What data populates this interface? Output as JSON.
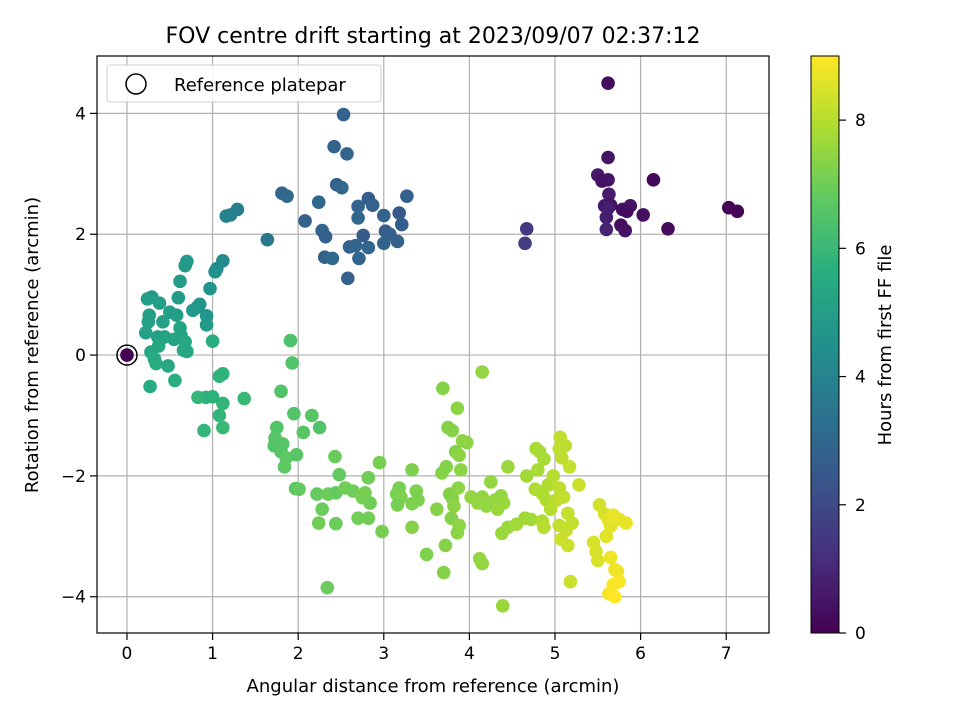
{
  "chart_data": {
    "type": "scatter",
    "title": "FOV centre drift starting at 2023/09/07 02:37:12",
    "xlabel": "Angular distance from reference (arcmin)",
    "ylabel": "Rotation from reference (arcmin)",
    "xlim": [
      -0.35,
      7.5
    ],
    "ylim": [
      -4.6,
      4.95
    ],
    "xticks": [
      0,
      1,
      2,
      3,
      4,
      5,
      6,
      7
    ],
    "yticks": [
      -4,
      -2,
      0,
      2,
      4
    ],
    "xtick_labels": [
      "0",
      "1",
      "2",
      "3",
      "4",
      "5",
      "6",
      "7"
    ],
    "ytick_labels": [
      "−4",
      "−2",
      "0",
      "2",
      "4"
    ],
    "grid": true,
    "legend": {
      "placement": "top-left",
      "entries": [
        "Reference platepar"
      ]
    },
    "colorbar": {
      "label": "Hours from first FF file",
      "range": [
        0,
        9
      ],
      "ticks": [
        0,
        2,
        4,
        6,
        8
      ],
      "tick_labels": [
        "0",
        "2",
        "4",
        "6",
        "8"
      ],
      "colormap": "viridis"
    },
    "reference_point": {
      "x": 0,
      "y": 0,
      "c": 0
    },
    "points": [
      {
        "x": 5.62,
        "y": 4.5,
        "c": 0.3
      },
      {
        "x": 5.62,
        "y": 3.27,
        "c": 0.5
      },
      {
        "x": 5.5,
        "y": 2.98,
        "c": 0.6
      },
      {
        "x": 5.55,
        "y": 2.88,
        "c": 0.4
      },
      {
        "x": 5.62,
        "y": 2.9,
        "c": 0.5
      },
      {
        "x": 5.63,
        "y": 2.66,
        "c": 0.7
      },
      {
        "x": 5.58,
        "y": 2.47,
        "c": 0.6
      },
      {
        "x": 5.65,
        "y": 2.48,
        "c": 0.4
      },
      {
        "x": 5.62,
        "y": 2.43,
        "c": 0.8
      },
      {
        "x": 5.79,
        "y": 2.41,
        "c": 0.4
      },
      {
        "x": 5.88,
        "y": 2.47,
        "c": 0.5
      },
      {
        "x": 5.84,
        "y": 2.38,
        "c": 0.3
      },
      {
        "x": 5.6,
        "y": 2.28,
        "c": 0.8
      },
      {
        "x": 5.77,
        "y": 2.15,
        "c": 0.3
      },
      {
        "x": 5.82,
        "y": 2.06,
        "c": 0.4
      },
      {
        "x": 5.6,
        "y": 2.08,
        "c": 0.9
      },
      {
        "x": 6.03,
        "y": 2.32,
        "c": 0.3
      },
      {
        "x": 6.15,
        "y": 2.9,
        "c": 0.2
      },
      {
        "x": 6.32,
        "y": 2.09,
        "c": 0.3
      },
      {
        "x": 7.03,
        "y": 2.44,
        "c": 0.1
      },
      {
        "x": 7.13,
        "y": 2.38,
        "c": 0.1
      },
      {
        "x": 4.67,
        "y": 2.09,
        "c": 1.5
      },
      {
        "x": 4.65,
        "y": 1.85,
        "c": 1.6
      },
      {
        "x": 2.53,
        "y": 3.98,
        "c": 2.9
      },
      {
        "x": 2.42,
        "y": 3.45,
        "c": 2.8
      },
      {
        "x": 2.57,
        "y": 3.33,
        "c": 2.9
      },
      {
        "x": 3.27,
        "y": 2.63,
        "c": 2.7
      },
      {
        "x": 2.45,
        "y": 2.82,
        "c": 2.8
      },
      {
        "x": 2.51,
        "y": 2.77,
        "c": 3.0
      },
      {
        "x": 2.7,
        "y": 2.46,
        "c": 2.9
      },
      {
        "x": 2.82,
        "y": 2.59,
        "c": 2.6
      },
      {
        "x": 2.87,
        "y": 2.48,
        "c": 2.8
      },
      {
        "x": 2.24,
        "y": 2.53,
        "c": 3.0
      },
      {
        "x": 1.87,
        "y": 2.63,
        "c": 3.1
      },
      {
        "x": 1.81,
        "y": 2.68,
        "c": 3.0
      },
      {
        "x": 2.08,
        "y": 2.22,
        "c": 2.8
      },
      {
        "x": 2.28,
        "y": 2.06,
        "c": 2.9
      },
      {
        "x": 2.32,
        "y": 1.96,
        "c": 2.7
      },
      {
        "x": 2.7,
        "y": 2.27,
        "c": 3.0
      },
      {
        "x": 2.6,
        "y": 1.79,
        "c": 2.8
      },
      {
        "x": 2.67,
        "y": 1.81,
        "c": 2.9
      },
      {
        "x": 2.76,
        "y": 1.98,
        "c": 2.6
      },
      {
        "x": 2.82,
        "y": 1.78,
        "c": 3.0
      },
      {
        "x": 2.31,
        "y": 1.62,
        "c": 2.8
      },
      {
        "x": 2.4,
        "y": 1.6,
        "c": 3.1
      },
      {
        "x": 2.71,
        "y": 1.6,
        "c": 2.9
      },
      {
        "x": 2.58,
        "y": 1.27,
        "c": 2.8
      },
      {
        "x": 3.0,
        "y": 2.31,
        "c": 2.8
      },
      {
        "x": 3.02,
        "y": 2.05,
        "c": 2.6
      },
      {
        "x": 3.07,
        "y": 2.0,
        "c": 2.7
      },
      {
        "x": 3.18,
        "y": 2.35,
        "c": 2.5
      },
      {
        "x": 3.21,
        "y": 2.16,
        "c": 2.6
      },
      {
        "x": 3.16,
        "y": 1.88,
        "c": 2.8
      },
      {
        "x": 3.0,
        "y": 1.85,
        "c": 2.9
      },
      {
        "x": 1.64,
        "y": 1.91,
        "c": 3.6
      },
      {
        "x": 1.16,
        "y": 2.3,
        "c": 4.0
      },
      {
        "x": 1.21,
        "y": 2.32,
        "c": 3.9
      },
      {
        "x": 1.29,
        "y": 2.41,
        "c": 3.8
      },
      {
        "x": 1.12,
        "y": 1.56,
        "c": 4.3
      },
      {
        "x": 1.05,
        "y": 1.43,
        "c": 4.4
      },
      {
        "x": 1.03,
        "y": 1.38,
        "c": 4.5
      },
      {
        "x": 0.97,
        "y": 1.1,
        "c": 4.6
      },
      {
        "x": 0.7,
        "y": 1.55,
        "c": 4.8
      },
      {
        "x": 0.68,
        "y": 1.48,
        "c": 4.9
      },
      {
        "x": 0.62,
        "y": 1.22,
        "c": 4.9
      },
      {
        "x": 0.6,
        "y": 0.95,
        "c": 4.9
      },
      {
        "x": 0.85,
        "y": 0.84,
        "c": 4.7
      },
      {
        "x": 0.82,
        "y": 0.79,
        "c": 4.6
      },
      {
        "x": 0.77,
        "y": 0.74,
        "c": 4.8
      },
      {
        "x": 0.93,
        "y": 0.65,
        "c": 4.7
      },
      {
        "x": 0.93,
        "y": 0.5,
        "c": 4.8
      },
      {
        "x": 0.29,
        "y": 0.96,
        "c": 4.9
      },
      {
        "x": 0.24,
        "y": 0.93,
        "c": 5.0
      },
      {
        "x": 0.38,
        "y": 0.86,
        "c": 5.0
      },
      {
        "x": 0.26,
        "y": 0.66,
        "c": 5.0
      },
      {
        "x": 0.5,
        "y": 0.71,
        "c": 5.1
      },
      {
        "x": 0.58,
        "y": 0.66,
        "c": 5.0
      },
      {
        "x": 0.42,
        "y": 0.55,
        "c": 5.1
      },
      {
        "x": 0.25,
        "y": 0.55,
        "c": 5.1
      },
      {
        "x": 0.62,
        "y": 0.45,
        "c": 5.2
      },
      {
        "x": 0.22,
        "y": 0.37,
        "c": 5.1
      },
      {
        "x": 0.36,
        "y": 0.3,
        "c": 5.1
      },
      {
        "x": 0.44,
        "y": 0.3,
        "c": 5.2
      },
      {
        "x": 0.55,
        "y": 0.26,
        "c": 5.2
      },
      {
        "x": 0.63,
        "y": 0.33,
        "c": 5.2
      },
      {
        "x": 0.68,
        "y": 0.22,
        "c": 5.3
      },
      {
        "x": 0.37,
        "y": 0.15,
        "c": 5.3
      },
      {
        "x": 0.66,
        "y": 0.08,
        "c": 5.4
      },
      {
        "x": 0.7,
        "y": 0.06,
        "c": 5.4
      },
      {
        "x": 0.28,
        "y": 0.05,
        "c": 5.4
      },
      {
        "x": 0.32,
        "y": -0.06,
        "c": 5.5
      },
      {
        "x": 0.34,
        "y": -0.14,
        "c": 5.5
      },
      {
        "x": 0.48,
        "y": -0.18,
        "c": 5.4
      },
      {
        "x": 0.56,
        "y": -0.42,
        "c": 5.6
      },
      {
        "x": 0.27,
        "y": -0.52,
        "c": 5.5
      },
      {
        "x": 1.0,
        "y": 0.23,
        "c": 5.6
      },
      {
        "x": 1.12,
        "y": -0.31,
        "c": 5.8
      },
      {
        "x": 1.08,
        "y": -0.35,
        "c": 5.8
      },
      {
        "x": 1.12,
        "y": -0.8,
        "c": 5.9
      },
      {
        "x": 1.0,
        "y": -0.69,
        "c": 5.8
      },
      {
        "x": 0.92,
        "y": -0.7,
        "c": 5.7
      },
      {
        "x": 0.83,
        "y": -0.7,
        "c": 5.9
      },
      {
        "x": 1.37,
        "y": -0.72,
        "c": 6.0
      },
      {
        "x": 1.08,
        "y": -1.0,
        "c": 5.9
      },
      {
        "x": 1.12,
        "y": -1.2,
        "c": 6.0
      },
      {
        "x": 0.9,
        "y": -1.25,
        "c": 5.9
      },
      {
        "x": 1.91,
        "y": 0.24,
        "c": 6.4
      },
      {
        "x": 1.93,
        "y": -0.13,
        "c": 6.5
      },
      {
        "x": 1.8,
        "y": -0.6,
        "c": 6.5
      },
      {
        "x": 1.95,
        "y": -0.97,
        "c": 6.5
      },
      {
        "x": 2.16,
        "y": -1.0,
        "c": 6.6
      },
      {
        "x": 2.25,
        "y": -1.2,
        "c": 6.5
      },
      {
        "x": 2.06,
        "y": -1.28,
        "c": 6.6
      },
      {
        "x": 1.75,
        "y": -1.2,
        "c": 6.5
      },
      {
        "x": 1.73,
        "y": -1.37,
        "c": 6.6
      },
      {
        "x": 1.72,
        "y": -1.5,
        "c": 6.5
      },
      {
        "x": 1.82,
        "y": -1.47,
        "c": 6.6
      },
      {
        "x": 1.8,
        "y": -1.6,
        "c": 6.6
      },
      {
        "x": 1.86,
        "y": -1.7,
        "c": 6.7
      },
      {
        "x": 1.98,
        "y": -1.65,
        "c": 6.6
      },
      {
        "x": 1.84,
        "y": -1.85,
        "c": 6.7
      },
      {
        "x": 1.97,
        "y": -2.21,
        "c": 6.7
      },
      {
        "x": 2.01,
        "y": -2.22,
        "c": 6.8
      },
      {
        "x": 2.22,
        "y": -2.3,
        "c": 6.8
      },
      {
        "x": 2.35,
        "y": -2.3,
        "c": 6.9
      },
      {
        "x": 2.44,
        "y": -2.28,
        "c": 6.8
      },
      {
        "x": 2.28,
        "y": -2.55,
        "c": 6.9
      },
      {
        "x": 2.24,
        "y": -2.78,
        "c": 7.0
      },
      {
        "x": 2.44,
        "y": -2.79,
        "c": 6.9
      },
      {
        "x": 2.34,
        "y": -3.85,
        "c": 6.9
      },
      {
        "x": 2.48,
        "y": -1.98,
        "c": 6.8
      },
      {
        "x": 2.43,
        "y": -1.68,
        "c": 6.9
      },
      {
        "x": 2.55,
        "y": -2.2,
        "c": 7.0
      },
      {
        "x": 2.64,
        "y": -2.25,
        "c": 7.0
      },
      {
        "x": 2.7,
        "y": -2.7,
        "c": 7.0
      },
      {
        "x": 2.82,
        "y": -2.7,
        "c": 7.0
      },
      {
        "x": 2.82,
        "y": -2.03,
        "c": 7.0
      },
      {
        "x": 2.95,
        "y": -1.78,
        "c": 7.1
      },
      {
        "x": 2.78,
        "y": -2.28,
        "c": 7.1
      },
      {
        "x": 2.75,
        "y": -2.36,
        "c": 7.1
      },
      {
        "x": 2.84,
        "y": -2.45,
        "c": 7.0
      },
      {
        "x": 2.98,
        "y": -2.92,
        "c": 7.1
      },
      {
        "x": 3.15,
        "y": -2.3,
        "c": 7.1
      },
      {
        "x": 3.18,
        "y": -2.2,
        "c": 7.1
      },
      {
        "x": 3.2,
        "y": -2.35,
        "c": 7.2
      },
      {
        "x": 3.16,
        "y": -2.48,
        "c": 7.1
      },
      {
        "x": 3.33,
        "y": -1.9,
        "c": 7.2
      },
      {
        "x": 3.38,
        "y": -2.25,
        "c": 7.2
      },
      {
        "x": 3.33,
        "y": -2.46,
        "c": 7.2
      },
      {
        "x": 3.4,
        "y": -2.4,
        "c": 7.2
      },
      {
        "x": 3.33,
        "y": -2.85,
        "c": 7.3
      },
      {
        "x": 3.5,
        "y": -3.3,
        "c": 7.2
      },
      {
        "x": 3.62,
        "y": -2.55,
        "c": 7.3
      },
      {
        "x": 3.7,
        "y": -3.6,
        "c": 7.3
      },
      {
        "x": 3.72,
        "y": -3.15,
        "c": 7.3
      },
      {
        "x": 3.68,
        "y": -1.95,
        "c": 7.3
      },
      {
        "x": 3.73,
        "y": -1.85,
        "c": 7.3
      },
      {
        "x": 3.77,
        "y": -2.3,
        "c": 7.3
      },
      {
        "x": 3.8,
        "y": -2.37,
        "c": 7.3
      },
      {
        "x": 3.82,
        "y": -2.5,
        "c": 7.4
      },
      {
        "x": 3.79,
        "y": -2.7,
        "c": 7.3
      },
      {
        "x": 3.88,
        "y": -2.82,
        "c": 7.4
      },
      {
        "x": 3.86,
        "y": -2.94,
        "c": 7.4
      },
      {
        "x": 3.87,
        "y": -2.2,
        "c": 7.4
      },
      {
        "x": 3.9,
        "y": -1.9,
        "c": 7.4
      },
      {
        "x": 3.84,
        "y": -1.6,
        "c": 7.3
      },
      {
        "x": 3.88,
        "y": -1.66,
        "c": 7.4
      },
      {
        "x": 3.75,
        "y": -1.2,
        "c": 7.3
      },
      {
        "x": 3.8,
        "y": -1.25,
        "c": 7.3
      },
      {
        "x": 3.69,
        "y": -0.55,
        "c": 7.3
      },
      {
        "x": 3.86,
        "y": -0.88,
        "c": 7.4
      },
      {
        "x": 3.92,
        "y": -1.42,
        "c": 7.4
      },
      {
        "x": 3.97,
        "y": -1.45,
        "c": 7.4
      },
      {
        "x": 4.15,
        "y": -0.28,
        "c": 7.5
      },
      {
        "x": 4.15,
        "y": -2.35,
        "c": 7.5
      },
      {
        "x": 4.1,
        "y": -2.45,
        "c": 7.5
      },
      {
        "x": 4.2,
        "y": -2.5,
        "c": 7.5
      },
      {
        "x": 4.25,
        "y": -2.1,
        "c": 7.5
      },
      {
        "x": 4.3,
        "y": -2.4,
        "c": 7.5
      },
      {
        "x": 4.33,
        "y": -2.55,
        "c": 7.6
      },
      {
        "x": 4.37,
        "y": -2.33,
        "c": 7.5
      },
      {
        "x": 4.4,
        "y": -2.45,
        "c": 7.6
      },
      {
        "x": 4.38,
        "y": -2.95,
        "c": 7.6
      },
      {
        "x": 4.45,
        "y": -2.85,
        "c": 7.6
      },
      {
        "x": 4.45,
        "y": -1.85,
        "c": 7.6
      },
      {
        "x": 4.12,
        "y": -3.37,
        "c": 7.5
      },
      {
        "x": 4.15,
        "y": -3.45,
        "c": 7.5
      },
      {
        "x": 4.39,
        "y": -4.15,
        "c": 7.6
      },
      {
        "x": 4.02,
        "y": -2.35,
        "c": 7.5
      },
      {
        "x": 4.55,
        "y": -2.8,
        "c": 7.7
      },
      {
        "x": 4.65,
        "y": -2.7,
        "c": 7.7
      },
      {
        "x": 4.72,
        "y": -2.72,
        "c": 7.7
      },
      {
        "x": 4.67,
        "y": -2.0,
        "c": 7.7
      },
      {
        "x": 4.78,
        "y": -1.55,
        "c": 7.8
      },
      {
        "x": 4.82,
        "y": -1.6,
        "c": 7.8
      },
      {
        "x": 4.87,
        "y": -1.72,
        "c": 7.8
      },
      {
        "x": 4.8,
        "y": -1.9,
        "c": 7.8
      },
      {
        "x": 4.77,
        "y": -2.22,
        "c": 7.9
      },
      {
        "x": 4.85,
        "y": -2.29,
        "c": 7.9
      },
      {
        "x": 4.92,
        "y": -2.15,
        "c": 7.9
      },
      {
        "x": 4.9,
        "y": -2.4,
        "c": 7.9
      },
      {
        "x": 4.85,
        "y": -2.75,
        "c": 7.9
      },
      {
        "x": 4.87,
        "y": -2.85,
        "c": 8.0
      },
      {
        "x": 4.95,
        "y": -2.55,
        "c": 8.0
      },
      {
        "x": 4.98,
        "y": -2.0,
        "c": 8.0
      },
      {
        "x": 5.02,
        "y": -2.4,
        "c": 8.1
      },
      {
        "x": 5.06,
        "y": -1.36,
        "c": 8.1
      },
      {
        "x": 5.05,
        "y": -1.55,
        "c": 8.1
      },
      {
        "x": 5.08,
        "y": -1.7,
        "c": 8.1
      },
      {
        "x": 5.12,
        "y": -1.5,
        "c": 8.1
      },
      {
        "x": 5.17,
        "y": -1.85,
        "c": 8.2
      },
      {
        "x": 5.05,
        "y": -2.2,
        "c": 8.1
      },
      {
        "x": 5.1,
        "y": -2.35,
        "c": 8.2
      },
      {
        "x": 5.05,
        "y": -2.82,
        "c": 8.2
      },
      {
        "x": 5.13,
        "y": -2.9,
        "c": 8.2
      },
      {
        "x": 5.15,
        "y": -2.62,
        "c": 8.2
      },
      {
        "x": 5.2,
        "y": -2.78,
        "c": 8.2
      },
      {
        "x": 5.07,
        "y": -3.05,
        "c": 8.3
      },
      {
        "x": 5.15,
        "y": -3.15,
        "c": 8.3
      },
      {
        "x": 5.18,
        "y": -3.75,
        "c": 8.3
      },
      {
        "x": 5.28,
        "y": -2.15,
        "c": 8.3
      },
      {
        "x": 5.52,
        "y": -2.48,
        "c": 8.4
      },
      {
        "x": 5.45,
        "y": -3.1,
        "c": 8.5
      },
      {
        "x": 5.48,
        "y": -3.25,
        "c": 8.5
      },
      {
        "x": 5.5,
        "y": -3.4,
        "c": 8.5
      },
      {
        "x": 5.58,
        "y": -2.63,
        "c": 8.5
      },
      {
        "x": 5.62,
        "y": -2.72,
        "c": 8.6
      },
      {
        "x": 5.65,
        "y": -2.83,
        "c": 8.6
      },
      {
        "x": 5.6,
        "y": -3.0,
        "c": 8.6
      },
      {
        "x": 5.68,
        "y": -2.65,
        "c": 8.7
      },
      {
        "x": 5.75,
        "y": -2.72,
        "c": 8.7
      },
      {
        "x": 5.83,
        "y": -2.78,
        "c": 8.7
      },
      {
        "x": 5.65,
        "y": -3.35,
        "c": 8.8
      },
      {
        "x": 5.7,
        "y": -3.55,
        "c": 8.8
      },
      {
        "x": 5.73,
        "y": -3.58,
        "c": 8.8
      },
      {
        "x": 5.68,
        "y": -3.8,
        "c": 8.9
      },
      {
        "x": 5.75,
        "y": -3.75,
        "c": 8.9
      },
      {
        "x": 5.63,
        "y": -3.95,
        "c": 8.9
      },
      {
        "x": 5.7,
        "y": -4.0,
        "c": 9.0
      }
    ]
  }
}
